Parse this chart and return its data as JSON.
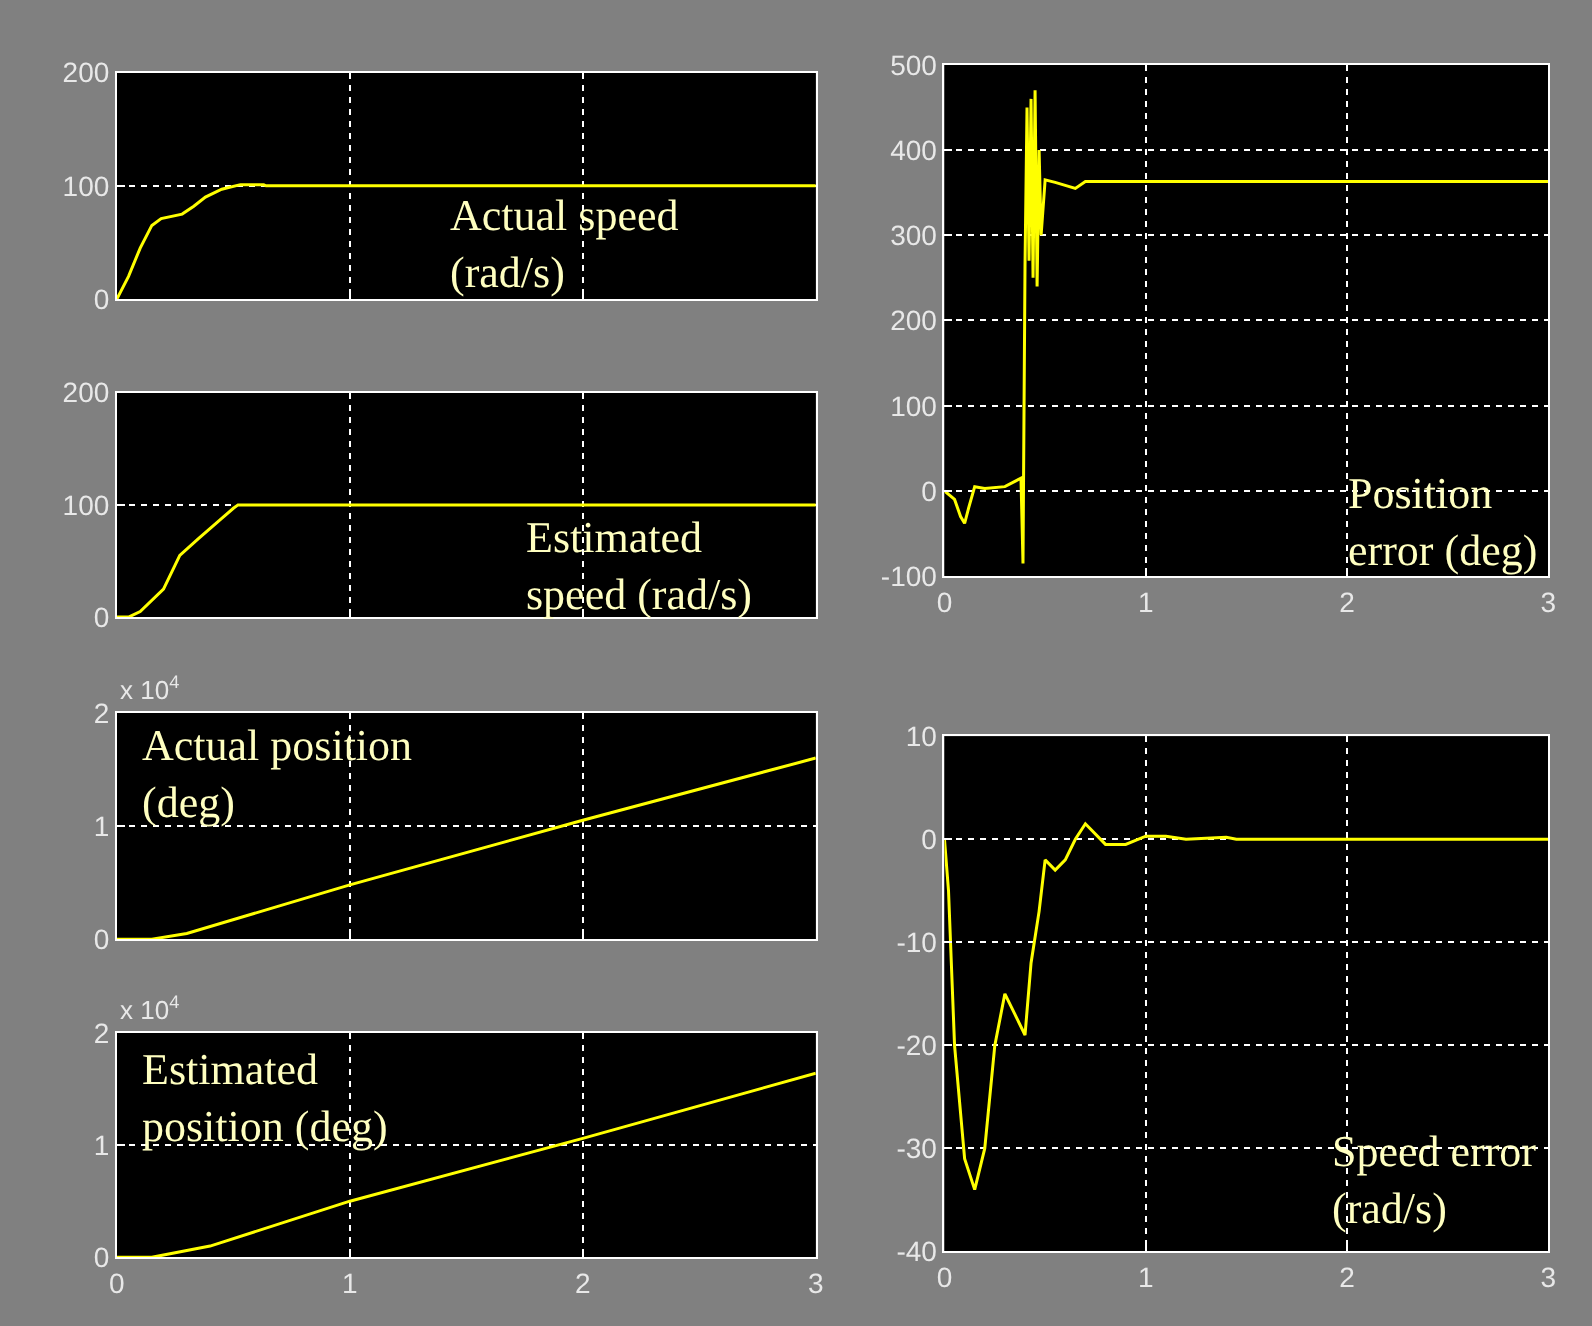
{
  "chart_data": [
    {
      "type": "line",
      "x": [
        0,
        0.05,
        0.1,
        0.15,
        0.19,
        0.28,
        0.33,
        0.38,
        0.45,
        0.53,
        0.63,
        0.64,
        3
      ],
      "series": [
        {
          "color": "#ffff00",
          "values": [
            0,
            20,
            45,
            65,
            71,
            75,
            82,
            90,
            97,
            101,
            101,
            100,
            100
          ]
        }
      ],
      "xlim": [
        0,
        3
      ],
      "xticks": [
        0,
        1,
        2,
        3
      ],
      "ylim": [
        0,
        200
      ],
      "yticks": [
        0,
        100,
        200
      ],
      "grid": true,
      "tick_labels": "y",
      "annotations": [
        "Actual speed\n(rad/s)"
      ]
    },
    {
      "type": "line",
      "x": [
        0,
        0.05,
        0.1,
        0.2,
        0.27,
        0.35,
        0.45,
        0.5,
        0.52,
        3
      ],
      "series": [
        {
          "color": "#ffff00",
          "values": [
            0,
            0,
            5,
            25,
            55,
            70,
            88,
            97,
            100,
            100
          ]
        }
      ],
      "xlim": [
        0,
        3
      ],
      "xticks": [
        0,
        1,
        2,
        3
      ],
      "ylim": [
        0,
        200
      ],
      "yticks": [
        0,
        100,
        200
      ],
      "grid": true,
      "tick_labels": "y",
      "annotations": [
        "Estimated\nspeed (rad/s)"
      ]
    },
    {
      "type": "line",
      "x": [
        0,
        0.15,
        0.3,
        1,
        2,
        3
      ],
      "series": [
        {
          "color": "#ffff00",
          "values": [
            0,
            0,
            0.05,
            0.48,
            1.05,
            1.6
          ]
        }
      ],
      "xlim": [
        0,
        3
      ],
      "xticks": [
        0,
        1,
        2,
        3
      ],
      "ylim": [
        0,
        2
      ],
      "yticks": [
        0,
        1,
        2
      ],
      "grid": true,
      "tick_labels": "y",
      "annotations": [
        "Actual position\n(deg)",
        "x 10$^{4}$"
      ]
    },
    {
      "type": "line",
      "x": [
        0,
        0.15,
        0.4,
        1,
        2,
        3
      ],
      "series": [
        {
          "color": "#ffff00",
          "values": [
            0,
            0,
            0.1,
            0.5,
            1.06,
            1.64
          ]
        }
      ],
      "xlim": [
        0,
        3
      ],
      "xticks": [
        0,
        1,
        2,
        3
      ],
      "ylim": [
        0,
        2
      ],
      "yticks": [
        0,
        1,
        2
      ],
      "grid": true,
      "annotations": [
        "Estimated\nposition (deg)",
        "x 10$^{4}$"
      ]
    },
    {
      "type": "line",
      "x": [
        0,
        0.05,
        0.08,
        0.1,
        0.12,
        0.15,
        0.2,
        0.3,
        0.38,
        0.39,
        0.4,
        0.41,
        0.42,
        0.43,
        0.44,
        0.45,
        0.46,
        0.47,
        0.48,
        0.5,
        0.55,
        0.65,
        0.7,
        3
      ],
      "series": [
        {
          "color": "#ffff00",
          "values": [
            0,
            -10,
            -30,
            -38,
            -20,
            5,
            3,
            5,
            15,
            -85,
            265,
            450,
            270,
            460,
            250,
            470,
            240,
            400,
            300,
            365,
            362,
            355,
            363,
            363
          ]
        }
      ],
      "xlim": [
        0,
        3
      ],
      "xticks": [
        0,
        1,
        2,
        3
      ],
      "ylim": [
        -100,
        500
      ],
      "yticks": [
        -100,
        0,
        100,
        200,
        300,
        400,
        500
      ],
      "grid": true,
      "annotations": [
        "Position\nerror (deg)"
      ]
    },
    {
      "type": "line",
      "x": [
        0,
        0.02,
        0.05,
        0.1,
        0.15,
        0.2,
        0.25,
        0.3,
        0.35,
        0.4,
        0.43,
        0.47,
        0.5,
        0.55,
        0.6,
        0.65,
        0.7,
        0.8,
        0.9,
        1.0,
        1.1,
        1.2,
        1.4,
        1.45,
        3
      ],
      "series": [
        {
          "color": "#ffff00",
          "values": [
            0,
            -5,
            -20,
            -31,
            -34,
            -30,
            -20,
            -15,
            -17,
            -19,
            -12,
            -7,
            -2,
            -3,
            -2,
            0,
            1.5,
            -0.5,
            -0.5,
            0.3,
            0.3,
            0,
            0.2,
            0,
            0
          ]
        }
      ],
      "xlim": [
        0,
        3
      ],
      "xticks": [
        0,
        1,
        2,
        3
      ],
      "ylim": [
        -40,
        10
      ],
      "yticks": [
        -40,
        -30,
        -20,
        -10,
        0,
        10
      ],
      "grid": true,
      "annotations": [
        "Speed error\n(rad/s)"
      ]
    }
  ]
}
